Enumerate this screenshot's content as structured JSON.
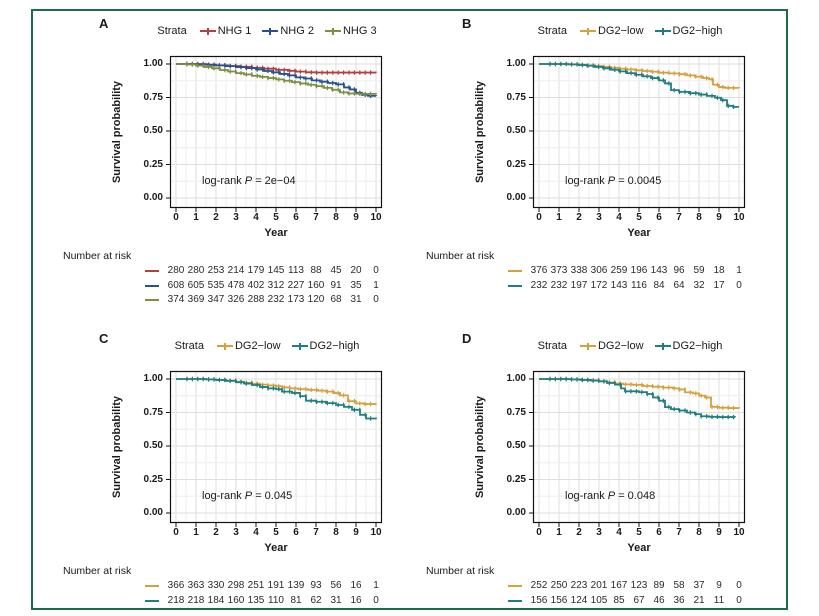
{
  "figure": {
    "frame_color": "#1b6d4a",
    "background": "#ffffff",
    "text_color": "#1a1a1a",
    "grid_major_color": "#dedede",
    "grid_minor_color": "#eeeeee",
    "axis_color": "#111111"
  },
  "chart_data": [
    {
      "type": "line",
      "subtype": "kaplan-meier-step",
      "panel_label": "A",
      "legend_title": "Strata",
      "legend_position": "top",
      "xlabel": "Year",
      "ylabel": "Survival probability",
      "xlim": [
        0,
        10
      ],
      "ylim": [
        0,
        1
      ],
      "xticks": [
        0,
        1,
        2,
        3,
        4,
        5,
        6,
        7,
        8,
        9,
        10
      ],
      "yticks": [
        "1.00",
        "0.75",
        "0.50",
        "0.25",
        "0.00"
      ],
      "grid": true,
      "annotation": {
        "prefix": "log-rank",
        "p_symbol": "P",
        "value": "2e−04"
      },
      "risk_title": "Number at risk",
      "series": [
        {
          "name": "NHG 1",
          "color": "#b0413e",
          "points": [
            [
              0,
              1
            ],
            [
              1.2,
              1
            ],
            [
              1.5,
              0.995
            ],
            [
              2,
              0.99
            ],
            [
              2.6,
              0.985
            ],
            [
              3.2,
              0.979
            ],
            [
              3.8,
              0.972
            ],
            [
              4.4,
              0.965
            ],
            [
              5,
              0.956
            ],
            [
              5.6,
              0.949
            ],
            [
              6,
              0.943
            ],
            [
              6.5,
              0.938
            ],
            [
              7,
              0.936
            ],
            [
              10,
              0.935
            ]
          ],
          "risk": [
            280,
            280,
            253,
            214,
            179,
            145,
            113,
            88,
            45,
            20,
            0
          ]
        },
        {
          "name": "NHG 2",
          "color": "#27518c",
          "points": [
            [
              0,
              1
            ],
            [
              1,
              0.998
            ],
            [
              1.6,
              0.994
            ],
            [
              2,
              0.99
            ],
            [
              2.5,
              0.984
            ],
            [
              3,
              0.977
            ],
            [
              3.5,
              0.969
            ],
            [
              4,
              0.959
            ],
            [
              4.4,
              0.948
            ],
            [
              4.8,
              0.938
            ],
            [
              5.2,
              0.926
            ],
            [
              5.6,
              0.915
            ],
            [
              6,
              0.9
            ],
            [
              6.4,
              0.892
            ],
            [
              6.8,
              0.878
            ],
            [
              7.2,
              0.868
            ],
            [
              7.6,
              0.858
            ],
            [
              8,
              0.848
            ],
            [
              8.4,
              0.825
            ],
            [
              8.7,
              0.81
            ],
            [
              9,
              0.785
            ],
            [
              9.3,
              0.77
            ],
            [
              9.6,
              0.762
            ],
            [
              10,
              0.76
            ]
          ],
          "risk": [
            608,
            605,
            535,
            478,
            402,
            312,
            227,
            160,
            91,
            35,
            1
          ]
        },
        {
          "name": "NHG 3",
          "color": "#7e8f3f",
          "points": [
            [
              0,
              1
            ],
            [
              0.6,
              0.996
            ],
            [
              1,
              0.988
            ],
            [
              1.4,
              0.978
            ],
            [
              1.8,
              0.968
            ],
            [
              2.2,
              0.955
            ],
            [
              2.6,
              0.944
            ],
            [
              3,
              0.932
            ],
            [
              3.4,
              0.922
            ],
            [
              3.8,
              0.912
            ],
            [
              4.2,
              0.904
            ],
            [
              4.6,
              0.895
            ],
            [
              5,
              0.885
            ],
            [
              5.4,
              0.875
            ],
            [
              5.8,
              0.865
            ],
            [
              6.2,
              0.855
            ],
            [
              6.6,
              0.845
            ],
            [
              7,
              0.835
            ],
            [
              7.4,
              0.822
            ],
            [
              7.8,
              0.808
            ],
            [
              8.2,
              0.788
            ],
            [
              8.6,
              0.78
            ],
            [
              9,
              0.777
            ],
            [
              10,
              0.775
            ]
          ],
          "risk": [
            374,
            369,
            347,
            326,
            288,
            232,
            173,
            120,
            68,
            31,
            0
          ]
        }
      ]
    },
    {
      "type": "line",
      "subtype": "kaplan-meier-step",
      "panel_label": "B",
      "legend_title": "Strata",
      "legend_position": "top",
      "xlabel": "Year",
      "ylabel": "Survival probability",
      "xlim": [
        0,
        10
      ],
      "ylim": [
        0,
        1
      ],
      "xticks": [
        0,
        1,
        2,
        3,
        4,
        5,
        6,
        7,
        8,
        9,
        10
      ],
      "yticks": [
        "1.00",
        "0.75",
        "0.50",
        "0.25",
        "0.00"
      ],
      "grid": true,
      "annotation": {
        "prefix": "log-rank",
        "p_symbol": "P",
        "value": "0.0045"
      },
      "risk_title": "Number at risk",
      "series": [
        {
          "name": "DG2−low",
          "color": "#d5a13f",
          "points": [
            [
              0,
              1
            ],
            [
              1.4,
              0.998
            ],
            [
              2,
              0.995
            ],
            [
              2.4,
              0.99
            ],
            [
              2.8,
              0.985
            ],
            [
              3.2,
              0.978
            ],
            [
              3.6,
              0.972
            ],
            [
              4,
              0.965
            ],
            [
              4.4,
              0.96
            ],
            [
              4.8,
              0.953
            ],
            [
              5.2,
              0.948
            ],
            [
              5.6,
              0.942
            ],
            [
              6,
              0.935
            ],
            [
              6.5,
              0.93
            ],
            [
              7,
              0.924
            ],
            [
              7.4,
              0.915
            ],
            [
              7.8,
              0.906
            ],
            [
              8.2,
              0.895
            ],
            [
              8.5,
              0.886
            ],
            [
              8.7,
              0.845
            ],
            [
              9,
              0.828
            ],
            [
              9.3,
              0.822
            ],
            [
              10,
              0.82
            ]
          ],
          "risk": [
            376,
            373,
            338,
            306,
            259,
            196,
            143,
            96,
            59,
            18,
            1
          ]
        },
        {
          "name": "DG2−high",
          "color": "#1f7e80",
          "points": [
            [
              0,
              1
            ],
            [
              1.5,
              0.997
            ],
            [
              2,
              0.992
            ],
            [
              2.4,
              0.987
            ],
            [
              2.8,
              0.978
            ],
            [
              3.2,
              0.968
            ],
            [
              3.6,
              0.957
            ],
            [
              4,
              0.945
            ],
            [
              4.4,
              0.932
            ],
            [
              4.8,
              0.92
            ],
            [
              5.2,
              0.908
            ],
            [
              5.6,
              0.895
            ],
            [
              6,
              0.878
            ],
            [
              6.3,
              0.855
            ],
            [
              6.6,
              0.805
            ],
            [
              7,
              0.792
            ],
            [
              7.5,
              0.782
            ],
            [
              8,
              0.772
            ],
            [
              8.4,
              0.762
            ],
            [
              8.8,
              0.748
            ],
            [
              9.1,
              0.73
            ],
            [
              9.4,
              0.688
            ],
            [
              9.7,
              0.68
            ],
            [
              10,
              0.68
            ]
          ],
          "risk": [
            232,
            232,
            197,
            172,
            143,
            116,
            84,
            64,
            32,
            17,
            0
          ]
        }
      ]
    },
    {
      "type": "line",
      "subtype": "kaplan-meier-step",
      "panel_label": "C",
      "legend_title": "Strata",
      "legend_position": "top",
      "xlabel": "Year",
      "ylabel": "Survival probability",
      "xlim": [
        0,
        10
      ],
      "ylim": [
        0,
        1
      ],
      "xticks": [
        0,
        1,
        2,
        3,
        4,
        5,
        6,
        7,
        8,
        9,
        10
      ],
      "yticks": [
        "1.00",
        "0.75",
        "0.50",
        "0.25",
        "0.00"
      ],
      "grid": true,
      "annotation": {
        "prefix": "log-rank",
        "p_symbol": "P",
        "value": "0.045"
      },
      "risk_title": "Number at risk",
      "series": [
        {
          "name": "DG2−low",
          "color": "#d5a13f",
          "points": [
            [
              0,
              1
            ],
            [
              1.5,
              0.997
            ],
            [
              2,
              0.993
            ],
            [
              2.5,
              0.988
            ],
            [
              3,
              0.98
            ],
            [
              3.4,
              0.972
            ],
            [
              3.8,
              0.965
            ],
            [
              4.2,
              0.958
            ],
            [
              4.6,
              0.952
            ],
            [
              5,
              0.947
            ],
            [
              5.3,
              0.937
            ],
            [
              5.7,
              0.93
            ],
            [
              6.1,
              0.924
            ],
            [
              6.6,
              0.919
            ],
            [
              7.1,
              0.913
            ],
            [
              7.5,
              0.906
            ],
            [
              7.9,
              0.895
            ],
            [
              8.2,
              0.878
            ],
            [
              8.6,
              0.835
            ],
            [
              9,
              0.818
            ],
            [
              9.4,
              0.813
            ],
            [
              10,
              0.81
            ]
          ],
          "risk": [
            366,
            363,
            330,
            298,
            251,
            191,
            139,
            93,
            56,
            16,
            1
          ]
        },
        {
          "name": "DG2−high",
          "color": "#1f7e80",
          "points": [
            [
              0,
              1
            ],
            [
              1.5,
              0.997
            ],
            [
              2,
              0.993
            ],
            [
              2.5,
              0.986
            ],
            [
              3,
              0.976
            ],
            [
              3.4,
              0.966
            ],
            [
              3.8,
              0.955
            ],
            [
              4.2,
              0.94
            ],
            [
              4.6,
              0.93
            ],
            [
              5,
              0.924
            ],
            [
              5.3,
              0.906
            ],
            [
              5.8,
              0.896
            ],
            [
              6.2,
              0.872
            ],
            [
              6.5,
              0.838
            ],
            [
              7,
              0.83
            ],
            [
              7.5,
              0.82
            ],
            [
              8,
              0.806
            ],
            [
              8.4,
              0.792
            ],
            [
              8.8,
              0.77
            ],
            [
              9.2,
              0.732
            ],
            [
              9.5,
              0.705
            ],
            [
              10,
              0.7
            ]
          ],
          "risk": [
            218,
            218,
            184,
            160,
            135,
            110,
            81,
            62,
            31,
            16,
            0
          ]
        }
      ]
    },
    {
      "type": "line",
      "subtype": "kaplan-meier-step",
      "panel_label": "D",
      "legend_title": "Strata",
      "legend_position": "top",
      "xlabel": "Year",
      "ylabel": "Survival probability",
      "xlim": [
        0,
        10
      ],
      "ylim": [
        0,
        1
      ],
      "xticks": [
        0,
        1,
        2,
        3,
        4,
        5,
        6,
        7,
        8,
        9,
        10
      ],
      "yticks": [
        "1.00",
        "0.75",
        "0.50",
        "0.25",
        "0.00"
      ],
      "grid": true,
      "annotation": {
        "prefix": "log-rank",
        "p_symbol": "P",
        "value": "0.048"
      },
      "risk_title": "Number at risk",
      "series": [
        {
          "name": "DG2−low",
          "color": "#d5a13f",
          "points": [
            [
              0,
              1
            ],
            [
              1.5,
              0.997
            ],
            [
              2,
              0.994
            ],
            [
              2.5,
              0.99
            ],
            [
              3,
              0.984
            ],
            [
              3.4,
              0.974
            ],
            [
              3.8,
              0.966
            ],
            [
              4.2,
              0.96
            ],
            [
              4.7,
              0.956
            ],
            [
              5.2,
              0.948
            ],
            [
              5.7,
              0.942
            ],
            [
              6.2,
              0.936
            ],
            [
              6.7,
              0.93
            ],
            [
              7,
              0.922
            ],
            [
              7.3,
              0.9
            ],
            [
              7.7,
              0.893
            ],
            [
              8,
              0.876
            ],
            [
              8.3,
              0.862
            ],
            [
              8.6,
              0.792
            ],
            [
              9,
              0.786
            ],
            [
              9.5,
              0.783
            ],
            [
              10,
              0.78
            ]
          ],
          "risk": [
            252,
            250,
            223,
            201,
            167,
            123,
            89,
            58,
            37,
            9,
            0
          ]
        },
        {
          "name": "DG2−high",
          "color": "#1f7e80",
          "points": [
            [
              0,
              1
            ],
            [
              1.6,
              0.997
            ],
            [
              2.1,
              0.993
            ],
            [
              2.6,
              0.988
            ],
            [
              3,
              0.982
            ],
            [
              3.4,
              0.97
            ],
            [
              3.8,
              0.958
            ],
            [
              4.1,
              0.93
            ],
            [
              4.3,
              0.908
            ],
            [
              5,
              0.902
            ],
            [
              5.4,
              0.888
            ],
            [
              5.7,
              0.862
            ],
            [
              6,
              0.838
            ],
            [
              6.3,
              0.79
            ],
            [
              6.6,
              0.775
            ],
            [
              7,
              0.765
            ],
            [
              7.4,
              0.75
            ],
            [
              7.8,
              0.738
            ],
            [
              8.1,
              0.722
            ],
            [
              8.5,
              0.718
            ],
            [
              9,
              0.716
            ],
            [
              9.8,
              0.715
            ]
          ],
          "risk": [
            156,
            156,
            124,
            105,
            85,
            67,
            46,
            36,
            21,
            11,
            0
          ]
        }
      ]
    }
  ]
}
